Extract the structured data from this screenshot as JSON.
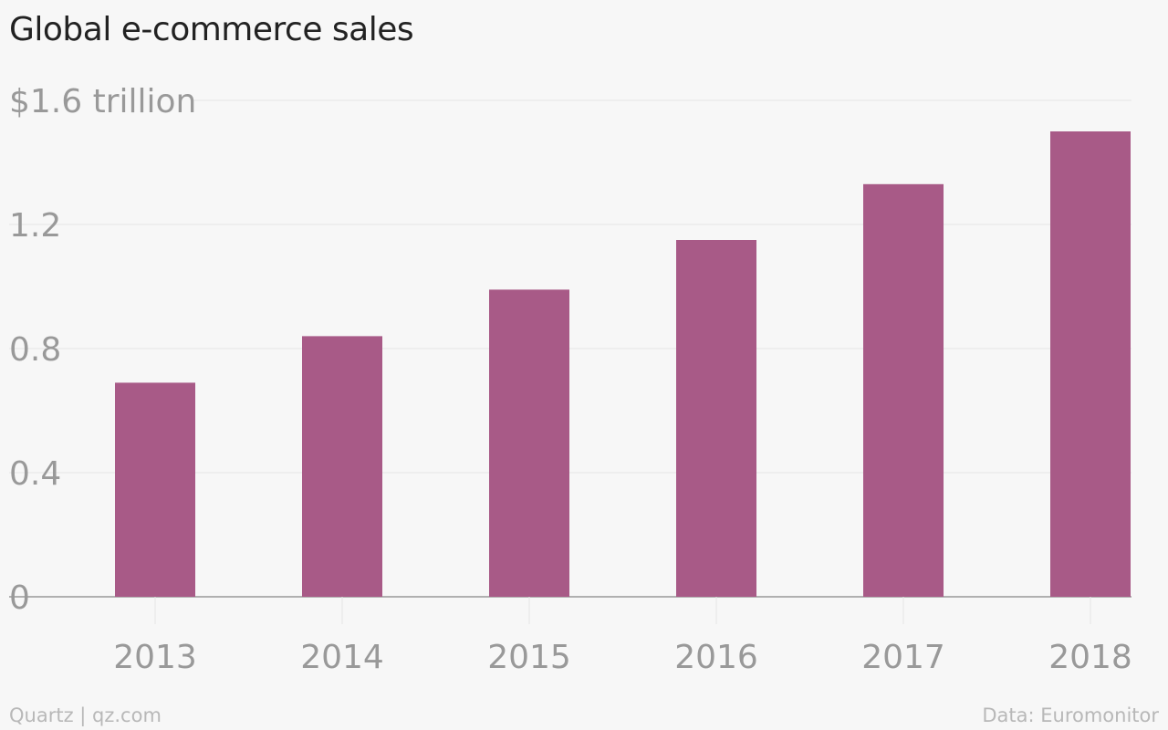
{
  "title": "Global e-commerce sales",
  "footer": {
    "credit": "Quartz | qz.com",
    "source": "Data: Euromonitor"
  },
  "colors": {
    "bar": "#a85a87",
    "grid": "#e6e6e6",
    "axis": "#999999",
    "tick_text": "#999999",
    "background": "#f7f7f7"
  },
  "chart_data": {
    "type": "bar",
    "title": "Global e-commerce sales",
    "categories": [
      "2013",
      "2014",
      "2015",
      "2016",
      "2017",
      "2018"
    ],
    "values": [
      0.69,
      0.84,
      0.99,
      1.15,
      1.33,
      1.5
    ],
    "ylim": [
      0,
      1.6
    ],
    "yticks": [
      0,
      0.4,
      0.8,
      1.2,
      1.6
    ],
    "ytick_labels": [
      "0",
      "0.4",
      "0.8",
      "1.2",
      "$1.6 trillion"
    ],
    "xlabel": "",
    "ylabel": "",
    "grid": true,
    "legend": "none"
  }
}
